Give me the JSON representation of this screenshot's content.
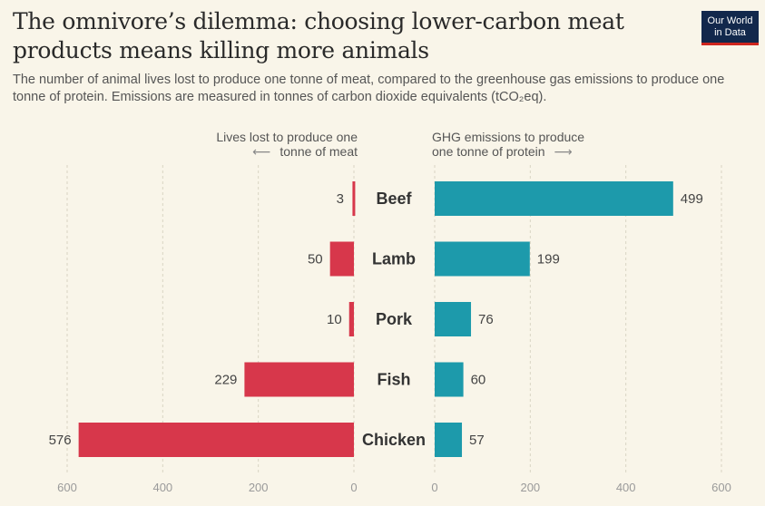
{
  "title": "The omnivore’s dilemma: choosing lower-carbon meat products means killing more animals",
  "subtitle": "The number of animal lives lost to produce one tonne of meat, compared to the greenhouse gas emissions to produce one tonne of protein. Emissions are measured in tonnes of carbon dioxide equivalents (tCO₂eq).",
  "logo": {
    "line1": "Our World",
    "line2": "in Data"
  },
  "left_header": {
    "line1": "Lives lost to produce one",
    "line2": "tonne of meat",
    "arrow": "⟵"
  },
  "right_header": {
    "line1": "GHG emissions to produce",
    "line2": "one tonne of protein",
    "arrow": "⟶"
  },
  "colors": {
    "left_bar": "#d7374b",
    "right_bar": "#1d9aab",
    "grid": "#d9d4c4",
    "tick": "#9a9a9a"
  },
  "chart_data": {
    "type": "bar",
    "categories": [
      "Beef",
      "Lamb",
      "Pork",
      "Fish",
      "Chicken"
    ],
    "series": [
      {
        "name": "Lives lost to produce one tonne of meat",
        "values": [
          3,
          50,
          10,
          229,
          576
        ],
        "xlim": [
          0,
          600
        ],
        "ticks": [
          600,
          400,
          200,
          0
        ]
      },
      {
        "name": "GHG emissions to produce one tonne of protein",
        "values": [
          499,
          199,
          76,
          60,
          57
        ],
        "xlim": [
          0,
          600
        ],
        "ticks": [
          0,
          200,
          400,
          600
        ]
      }
    ]
  }
}
